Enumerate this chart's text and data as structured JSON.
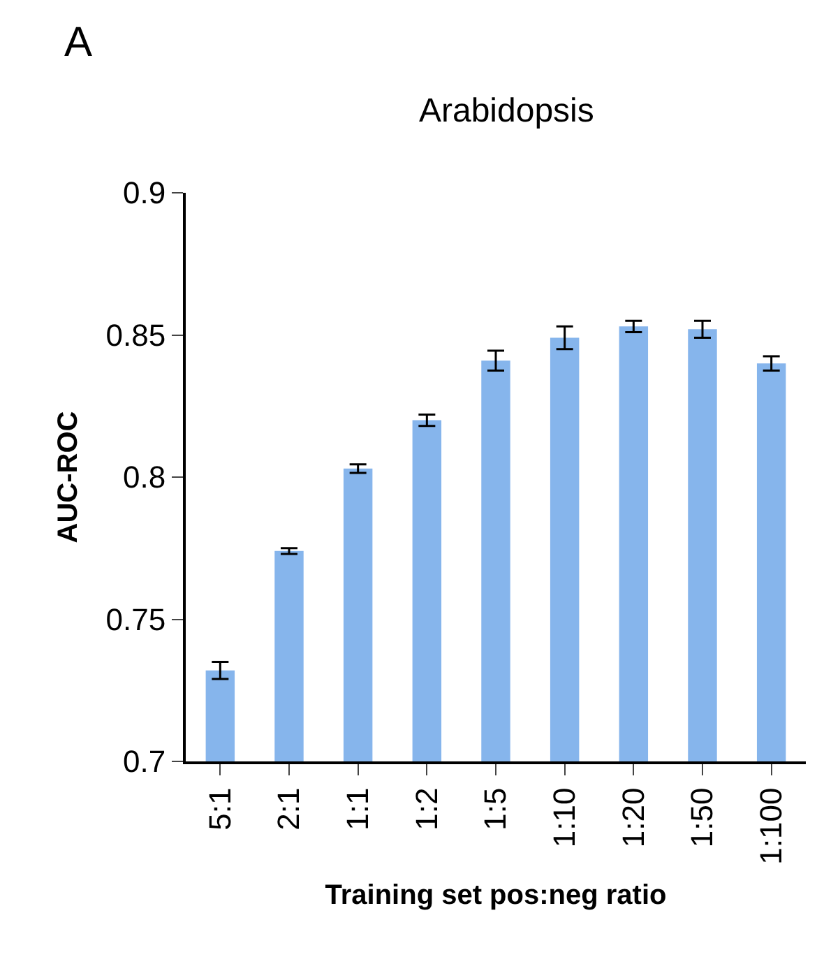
{
  "chart_data": {
    "type": "bar",
    "title": "Arabidopsis",
    "xlabel": "Training set pos:neg ratio",
    "ylabel": "AUC-ROC",
    "annotations": [
      "A"
    ],
    "categories": [
      "5:1",
      "2:1",
      "1:1",
      "1:2",
      "1:5",
      "1:10",
      "1:20",
      "1:50",
      "1:100"
    ],
    "values": [
      0.732,
      0.774,
      0.803,
      0.82,
      0.841,
      0.849,
      0.853,
      0.852,
      0.84
    ],
    "errors": [
      0.003,
      0.001,
      0.0015,
      0.002,
      0.0035,
      0.004,
      0.002,
      0.003,
      0.0025
    ],
    "color": "#86b5ec",
    "ylim": [
      0.7,
      0.9
    ],
    "yticks": [
      0.7,
      0.75,
      0.8,
      0.85,
      0.9
    ]
  }
}
